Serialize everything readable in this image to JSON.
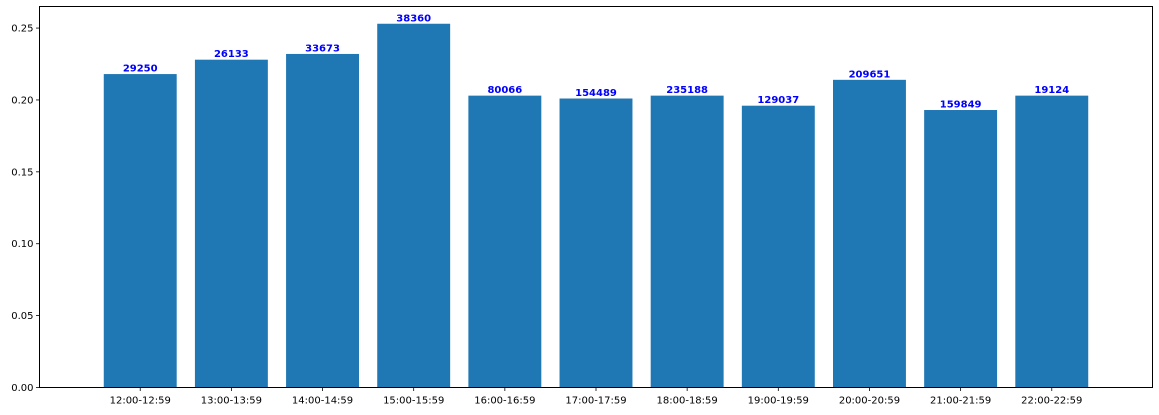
{
  "chart_data": {
    "type": "bar",
    "title": "",
    "xlabel": "",
    "ylabel": "",
    "categories": [
      "12:00-12:59",
      "13:00-13:59",
      "14:00-14:59",
      "15:00-15:59",
      "16:00-16:59",
      "17:00-17:59",
      "18:00-18:59",
      "19:00-19:59",
      "20:00-20:59",
      "21:00-21:59",
      "22:00-22:59"
    ],
    "values": [
      0.218,
      0.228,
      0.232,
      0.253,
      0.203,
      0.201,
      0.203,
      0.196,
      0.214,
      0.193,
      0.203
    ],
    "data_labels": [
      "29250",
      "26133",
      "33673",
      "38360",
      "80066",
      "154489",
      "235188",
      "129037",
      "209651",
      "159849",
      "19124"
    ],
    "ylim": [
      0,
      0.265
    ],
    "yticks": [
      0.0,
      0.05,
      0.1,
      0.15,
      0.2,
      0.25
    ],
    "ytick_labels": [
      "0.00",
      "0.05",
      "0.10",
      "0.15",
      "0.20",
      "0.25"
    ],
    "grid": false,
    "bar_color": "#1f77b4",
    "label_color": "#0000ff"
  }
}
